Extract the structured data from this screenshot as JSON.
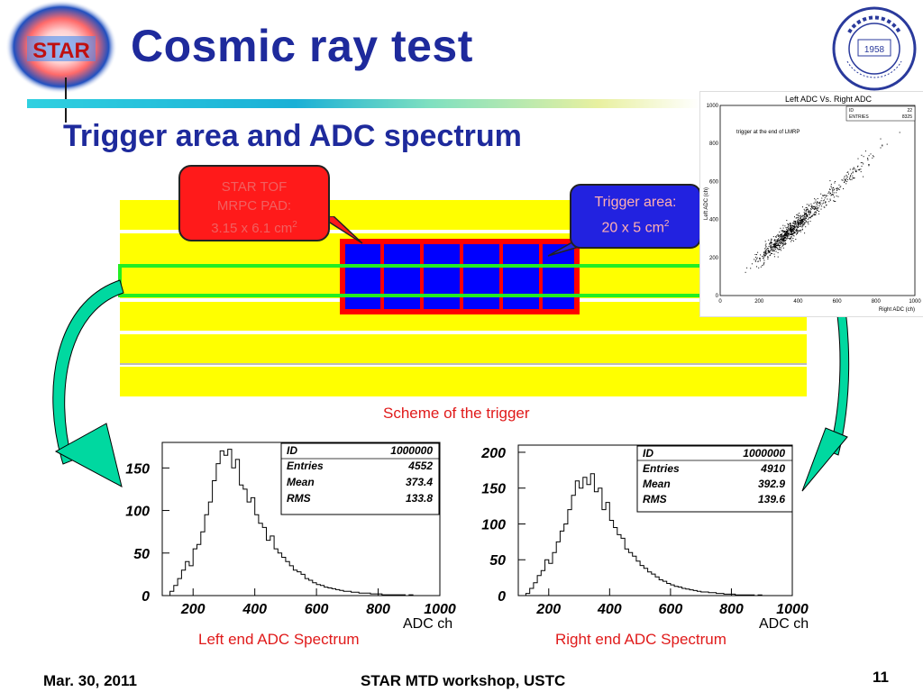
{
  "slide": {
    "logo_text": "STAR",
    "title": "Cosmic ray test",
    "subtitle": "Trigger area and ADC spectrum",
    "page_number": "11"
  },
  "callouts": {
    "tof_pad": {
      "line1": "STAR TOF",
      "line2": "MRPC PAD:",
      "line3": "3.15 x 6.1 cm",
      "sup": "2"
    },
    "trigger_area": {
      "line1": "Trigger area:",
      "line2": "20 x 5 cm",
      "sup": "2"
    }
  },
  "scheme_caption": "Scheme of the trigger",
  "scatter": {
    "title": "Left ADC Vs. Right ADC",
    "note": "trigger at the end of LMRP",
    "ylabel": "Left ADC (ch)",
    "xlabel": "Right ADC (ch)",
    "stats": [
      [
        "ID",
        "22"
      ],
      [
        "ENTRIES",
        "8325"
      ]
    ]
  },
  "left_spectrum": {
    "caption": "Left end ADC Spectrum",
    "xunit": "ADC ch",
    "stats": [
      [
        "ID",
        "1000000"
      ],
      [
        "Entries",
        "4552"
      ],
      [
        "Mean",
        "373.4"
      ],
      [
        "RMS",
        "133.8"
      ]
    ]
  },
  "right_spectrum": {
    "caption": "Right end ADC Spectrum",
    "xunit": "ADC ch",
    "stats": [
      [
        "ID",
        "1000000"
      ],
      [
        "Entries",
        "4910"
      ],
      [
        "Mean",
        "392.9"
      ],
      [
        "RMS",
        "139.6"
      ]
    ]
  },
  "footer": {
    "date": "Mar. 30, 2011",
    "event": "STAR MTD workshop, USTC"
  },
  "colors": {
    "title": "#1e2a9c",
    "caption": "#e01a1a",
    "strip": "#ffff00",
    "pad_fill": "#0000ff",
    "pad_border": "#ff0000",
    "trigger_line": "#22ee22",
    "arrow": "#00d8a0"
  },
  "chart_data": [
    {
      "type": "scatter",
      "title": "Left ADC Vs. Right ADC",
      "xlabel": "Right ADC (ch)",
      "ylabel": "Left ADC (ch)",
      "xlim": [
        0,
        1000
      ],
      "ylim": [
        0,
        1000
      ],
      "xticks": [
        "0",
        "200",
        "400",
        "600",
        "800",
        "1000"
      ],
      "yticks": [
        "0",
        "200",
        "400",
        "600",
        "800",
        "1000"
      ],
      "annotation": "trigger at the end of LMRP",
      "correlation": "positive, dense core near (350, 330)"
    },
    {
      "type": "bar",
      "title": "",
      "xlabel": "ADC ch",
      "ylabel": "",
      "xlim": [
        100,
        1000
      ],
      "ylim": [
        0,
        180
      ],
      "xticks": [
        "200",
        "400",
        "600",
        "800",
        "1000"
      ],
      "yticks": [
        "0",
        "50",
        "100",
        "150"
      ],
      "bin_start": 100,
      "bin_width": 12.5,
      "values": [
        0,
        0,
        5,
        12,
        20,
        30,
        40,
        35,
        55,
        60,
        75,
        95,
        110,
        135,
        155,
        170,
        165,
        172,
        150,
        160,
        130,
        125,
        110,
        115,
        95,
        85,
        80,
        65,
        70,
        55,
        50,
        45,
        40,
        35,
        30,
        28,
        25,
        20,
        18,
        15,
        13,
        12,
        10,
        9,
        8,
        7,
        6,
        5,
        5,
        4,
        4,
        3,
        3,
        3,
        2,
        2,
        2,
        1,
        1,
        1,
        1,
        1,
        1,
        0,
        1,
        0,
        0,
        0,
        0,
        0,
        0,
        0
      ]
    },
    {
      "type": "bar",
      "title": "",
      "xlabel": "ADC ch",
      "ylabel": "",
      "xlim": [
        100,
        1000
      ],
      "ylim": [
        0,
        210
      ],
      "xticks": [
        "200",
        "400",
        "600",
        "800",
        "1000"
      ],
      "yticks": [
        "0",
        "50",
        "100",
        "150",
        "200"
      ],
      "bin_start": 100,
      "bin_width": 12.5,
      "values": [
        0,
        0,
        3,
        10,
        18,
        28,
        35,
        50,
        45,
        60,
        75,
        90,
        100,
        120,
        140,
        160,
        150,
        165,
        155,
        170,
        145,
        150,
        120,
        130,
        105,
        95,
        85,
        80,
        65,
        60,
        55,
        48,
        42,
        38,
        33,
        30,
        26,
        22,
        20,
        17,
        15,
        13,
        12,
        10,
        9,
        8,
        7,
        6,
        5,
        5,
        4,
        4,
        3,
        3,
        2,
        2,
        2,
        1,
        1,
        1,
        1,
        1,
        0,
        1,
        0,
        0,
        0,
        0,
        0,
        0,
        0,
        0
      ]
    }
  ]
}
